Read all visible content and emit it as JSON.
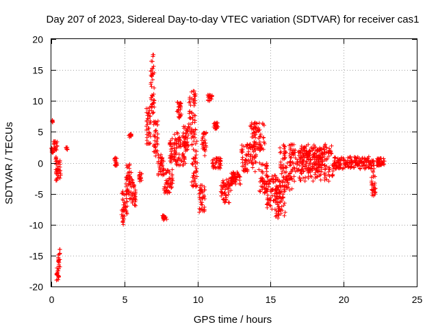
{
  "chart_data": {
    "type": "scatter",
    "title": "Day 207 of 2023, Sidereal Day-to-day VTEC variation (SDTVAR) for receiver cas1",
    "xlabel": "GPS time / hours",
    "ylabel": "SDTVAR / TECUs",
    "xlim": [
      0,
      25
    ],
    "ylim": [
      -20,
      20
    ],
    "x_ticks": [
      0,
      5,
      10,
      15,
      20,
      25
    ],
    "y_ticks": [
      -20,
      -15,
      -10,
      -5,
      0,
      5,
      10,
      15,
      20
    ],
    "x_tick_labels": [
      "0",
      "5",
      "10",
      "15",
      "20",
      "25"
    ],
    "y_tick_labels": [
      "-20",
      "-15",
      "-10",
      "-5",
      "0",
      "5",
      "10",
      "15",
      "20"
    ],
    "grid": true,
    "marker": "+",
    "series": [
      {
        "name": "cas1",
        "color": "#ff0000",
        "segments": [
          {
            "x0": 0.0,
            "x1": 0.15,
            "y0": 1.5,
            "y1": 2.5
          },
          {
            "x0": 0.05,
            "x1": 0.1,
            "y0": 6.5,
            "y1": 7.0
          },
          {
            "x0": 0.15,
            "x1": 0.4,
            "y0": 2.0,
            "y1": 3.5
          },
          {
            "x0": 0.3,
            "x1": 0.45,
            "y0": -3.0,
            "y1": 1.0
          },
          {
            "x0": 0.35,
            "x1": 0.55,
            "y0": -19.0,
            "y1": -17.0
          },
          {
            "x0": 0.45,
            "x1": 0.6,
            "y0": -17.0,
            "y1": -14.0
          },
          {
            "x0": 0.45,
            "x1": 0.65,
            "y0": -2.5,
            "y1": 0.5
          },
          {
            "x0": 1.0,
            "x1": 1.1,
            "y0": 2.0,
            "y1": 2.5
          },
          {
            "x0": 4.3,
            "x1": 4.5,
            "y0": -0.5,
            "y1": 1.0
          },
          {
            "x0": 4.8,
            "x1": 5.2,
            "y0": -10.0,
            "y1": -4.5
          },
          {
            "x0": 5.1,
            "x1": 5.5,
            "y0": -6.0,
            "y1": 0.0
          },
          {
            "x0": 5.3,
            "x1": 5.5,
            "y0": 4.0,
            "y1": 4.8
          },
          {
            "x0": 5.4,
            "x1": 5.8,
            "y0": -7.0,
            "y1": -2.5
          },
          {
            "x0": 6.0,
            "x1": 6.2,
            "y0": -3.0,
            "y1": -1.5
          },
          {
            "x0": 6.5,
            "x1": 6.8,
            "y0": 3.0,
            "y1": 9.0
          },
          {
            "x0": 6.8,
            "x1": 7.05,
            "y0": 8.0,
            "y1": 17.5
          },
          {
            "x0": 7.0,
            "x1": 7.3,
            "y0": 1.0,
            "y1": 7.0
          },
          {
            "x0": 7.3,
            "x1": 7.7,
            "y0": -2.0,
            "y1": 1.5
          },
          {
            "x0": 7.6,
            "x1": 7.9,
            "y0": -9.5,
            "y1": -8.5
          },
          {
            "x0": 7.7,
            "x1": 8.3,
            "y0": -5.0,
            "y1": -1.0
          },
          {
            "x0": 8.1,
            "x1": 8.6,
            "y0": 0.0,
            "y1": 4.0
          },
          {
            "x0": 8.4,
            "x1": 9.2,
            "y0": -0.5,
            "y1": 5.0
          },
          {
            "x0": 8.6,
            "x1": 8.9,
            "y0": 7.0,
            "y1": 10.0
          },
          {
            "x0": 9.0,
            "x1": 9.4,
            "y0": 2.0,
            "y1": 6.0
          },
          {
            "x0": 9.4,
            "x1": 9.9,
            "y0": 4.0,
            "y1": 12.0
          },
          {
            "x0": 9.6,
            "x1": 10.0,
            "y0": -4.0,
            "y1": 4.0
          },
          {
            "x0": 10.1,
            "x1": 10.5,
            "y0": -8.0,
            "y1": -3.5
          },
          {
            "x0": 10.3,
            "x1": 10.6,
            "y0": 1.0,
            "y1": 5.0
          },
          {
            "x0": 10.7,
            "x1": 11.0,
            "y0": 10.0,
            "y1": 11.0
          },
          {
            "x0": 11.0,
            "x1": 11.6,
            "y0": -1.0,
            "y1": 0.8
          },
          {
            "x0": 11.1,
            "x1": 11.4,
            "y0": 5.5,
            "y1": 6.5
          },
          {
            "x0": 11.6,
            "x1": 12.3,
            "y0": -6.5,
            "y1": -2.5
          },
          {
            "x0": 12.3,
            "x1": 13.0,
            "y0": -3.5,
            "y1": -1.5
          },
          {
            "x0": 13.0,
            "x1": 14.0,
            "y0": -1.5,
            "y1": 3.0
          },
          {
            "x0": 13.6,
            "x1": 14.6,
            "y0": 2.0,
            "y1": 6.5
          },
          {
            "x0": 14.2,
            "x1": 14.8,
            "y0": -5.0,
            "y1": 0.0
          },
          {
            "x0": 14.7,
            "x1": 15.6,
            "y0": -7.5,
            "y1": -2.0
          },
          {
            "x0": 15.3,
            "x1": 16.0,
            "y0": -9.0,
            "y1": -3.0
          },
          {
            "x0": 15.6,
            "x1": 16.5,
            "y0": -4.5,
            "y1": 3.0
          },
          {
            "x0": 16.3,
            "x1": 19.3,
            "y0": -3.0,
            "y1": 3.0
          },
          {
            "x0": 16.8,
            "x1": 18.6,
            "y0": -1.5,
            "y1": 2.5
          },
          {
            "x0": 19.3,
            "x1": 21.9,
            "y0": -1.0,
            "y1": 1.0
          },
          {
            "x0": 21.9,
            "x1": 22.2,
            "y0": -6.0,
            "y1": 0.5
          },
          {
            "x0": 22.2,
            "x1": 22.8,
            "y0": -0.5,
            "y1": 0.8
          }
        ]
      }
    ]
  }
}
